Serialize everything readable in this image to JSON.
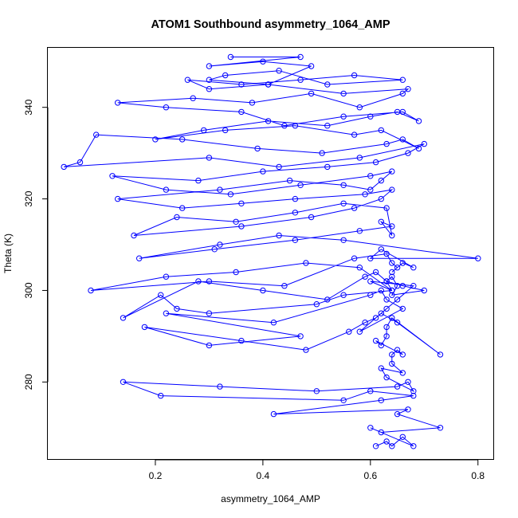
{
  "chart_data": {
    "type": "line",
    "title": "ATOM1 Southbound asymmetry_1064_AMP",
    "xlabel": "asymmetry_1064_AMP",
    "ylabel": "Theta (K)",
    "xlim": [
      0.0,
      0.83
    ],
    "ylim": [
      263,
      353
    ],
    "xticks": [
      0.2,
      0.4,
      0.6,
      0.8
    ],
    "xtick_labels": [
      "0.2",
      "0.4",
      "0.6",
      "0.8"
    ],
    "yticks": [
      280,
      300,
      320,
      340
    ],
    "ytick_labels": [
      "280",
      "300",
      "320",
      "340"
    ],
    "grid": false,
    "markers": "open-circle",
    "color": "#0000ff",
    "series": [
      {
        "x": [
          0.61,
          0.63,
          0.64,
          0.66,
          0.68,
          0.6,
          0.62,
          0.73,
          0.65,
          0.67,
          0.42,
          0.62,
          0.68,
          0.6,
          0.55,
          0.21,
          0.14,
          0.32,
          0.5,
          0.65,
          0.67,
          0.68,
          0.63,
          0.62,
          0.66,
          0.64,
          0.64,
          0.65,
          0.66,
          0.61,
          0.62,
          0.63,
          0.63,
          0.64,
          0.73,
          0.65,
          0.62,
          0.58,
          0.66,
          0.63,
          0.62,
          0.6,
          0.42,
          0.22,
          0.47,
          0.3,
          0.18,
          0.36,
          0.48,
          0.56,
          0.59,
          0.61,
          0.63,
          0.65,
          0.68,
          0.6,
          0.64,
          0.55,
          0.5,
          0.3,
          0.24,
          0.21,
          0.14,
          0.28,
          0.4,
          0.52,
          0.59,
          0.61,
          0.63,
          0.66,
          0.7,
          0.64,
          0.65,
          0.64,
          0.63,
          0.64,
          0.58,
          0.48,
          0.35,
          0.22,
          0.08,
          0.3,
          0.44,
          0.57,
          0.63,
          0.64,
          0.65,
          0.64,
          0.66,
          0.68,
          0.62,
          0.6,
          0.8,
          0.55,
          0.43,
          0.32,
          0.17,
          0.31,
          0.46,
          0.58,
          0.64,
          0.62,
          0.64,
          0.63,
          0.55,
          0.46,
          0.35,
          0.24,
          0.16,
          0.36,
          0.49,
          0.57,
          0.62,
          0.64,
          0.59,
          0.46,
          0.36,
          0.25,
          0.13,
          0.32,
          0.45,
          0.55,
          0.6,
          0.62,
          0.64,
          0.6,
          0.47,
          0.34,
          0.22,
          0.12,
          0.28,
          0.4,
          0.52,
          0.61,
          0.67,
          0.7,
          0.58,
          0.43,
          0.3,
          0.03,
          0.06,
          0.09,
          0.25,
          0.39,
          0.51,
          0.63,
          0.66,
          0.69,
          0.62,
          0.57,
          0.46,
          0.33,
          0.2,
          0.29,
          0.41,
          0.52,
          0.6,
          0.65,
          0.69,
          0.66,
          0.55,
          0.44,
          0.36,
          0.22,
          0.13,
          0.27,
          0.38,
          0.49,
          0.58,
          0.66,
          0.67,
          0.55,
          0.41,
          0.3,
          0.26,
          0.36,
          0.47,
          0.57,
          0.66,
          0.52,
          0.43,
          0.33,
          0.3,
          0.41,
          0.49,
          0.4,
          0.3,
          0.47,
          0.34
        ],
        "y": [
          266,
          267,
          266,
          268,
          266,
          270,
          269,
          270,
          273,
          274,
          273,
          276,
          277,
          278,
          276,
          277,
          280,
          279,
          278,
          279,
          280,
          278,
          281,
          283,
          282,
          284,
          286,
          287,
          286,
          289,
          288,
          290,
          292,
          294,
          286,
          293,
          295,
          291,
          296,
          298,
          300,
          299,
          293,
          295,
          290,
          288,
          292,
          289,
          287,
          291,
          293,
          294,
          296,
          298,
          301,
          302,
          300,
          299,
          297,
          295,
          296,
          299,
          294,
          302,
          300,
          298,
          303,
          304,
          302,
          301,
          300,
          299,
          301,
          303,
          302,
          300,
          305,
          306,
          304,
          303,
          300,
          302,
          301,
          307,
          308,
          306,
          305,
          304,
          306,
          305,
          309,
          307,
          307,
          311,
          312,
          310,
          307,
          309,
          311,
          313,
          314,
          315,
          312,
          318,
          319,
          317,
          315,
          316,
          312,
          314,
          316,
          318,
          320,
          322,
          321,
          320,
          319,
          318,
          320,
          322,
          324,
          323,
          322,
          324,
          326,
          325,
          323,
          321,
          322,
          325,
          324,
          326,
          327,
          328,
          330,
          332,
          329,
          327,
          329,
          327,
          328,
          334,
          333,
          331,
          330,
          332,
          333,
          331,
          335,
          334,
          336,
          335,
          333,
          335,
          337,
          336,
          338,
          339,
          337,
          339,
          338,
          336,
          339,
          340,
          341,
          342,
          341,
          343,
          340,
          343,
          344,
          343,
          345,
          344,
          346,
          345,
          346,
          347,
          346,
          345,
          348,
          347,
          346,
          345,
          349,
          350,
          349,
          351,
          351
        ]
      }
    ]
  }
}
